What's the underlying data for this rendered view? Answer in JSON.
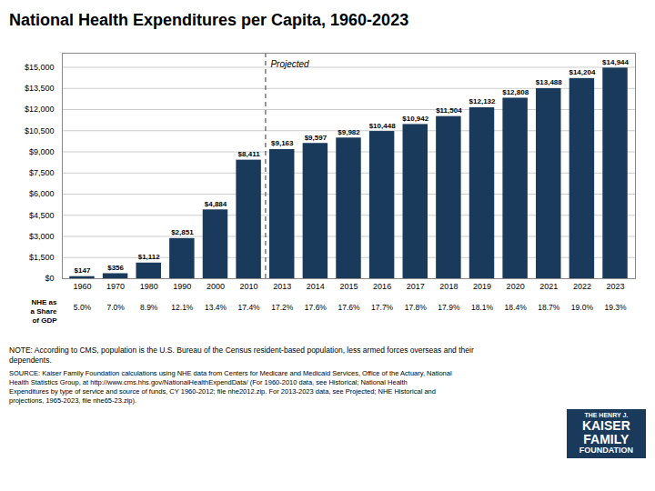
{
  "chart_data": {
    "type": "bar",
    "title": "National Health Expenditures per Capita, 1960-2023",
    "categories": [
      "1960",
      "1970",
      "1980",
      "1990",
      "2000",
      "2010",
      "2013",
      "2014",
      "2015",
      "2016",
      "2017",
      "2018",
      "2019",
      "2020",
      "2021",
      "2022",
      "2023"
    ],
    "values": [
      147,
      356,
      1112,
      2851,
      4884,
      8411,
      9163,
      9597,
      9982,
      10448,
      10942,
      11504,
      12132,
      12808,
      13488,
      14204,
      14944
    ],
    "value_labels": [
      "$147",
      "$356",
      "$1,112",
      "$2,851",
      "$4,884",
      "$8,411",
      "$9,163",
      "$9,597",
      "$9,982",
      "$10,448",
      "$10,942",
      "$11,504",
      "$12,132",
      "$12,808",
      "$13,488",
      "$14,204",
      "$14,944"
    ],
    "data_labels": true,
    "color": "#1a3a5c",
    "ylim": [
      0,
      16000
    ],
    "yticks": [
      {
        "value": 0,
        "label": "$0"
      },
      {
        "value": 1500,
        "label": "$1,500"
      },
      {
        "value": 3000,
        "label": "$3,000"
      },
      {
        "value": 4500,
        "label": "$4,500"
      },
      {
        "value": 6000,
        "label": "$6,000"
      },
      {
        "value": 7500,
        "label": "$7,500"
      },
      {
        "value": 9000,
        "label": "$9,000"
      },
      {
        "value": 10500,
        "label": "$10,500"
      },
      {
        "value": 12000,
        "label": "$12,000"
      },
      {
        "value": 13500,
        "label": "$13,500"
      },
      {
        "value": 15000,
        "label": "$15,000"
      }
    ],
    "grid": true,
    "projected_label": "Projected",
    "projected_start": "2013",
    "gdp_share_label": "NHE as\na Share\nof GDP",
    "gdp_shares": [
      "5.0%",
      "7.0%",
      "8.9%",
      "12.1%",
      "13.4%",
      "17.4%",
      "17.2%",
      "17.6%",
      "17.6%",
      "17.7%",
      "17.8%",
      "17.9%",
      "18.1%",
      "18.4%",
      "18.7%",
      "19.0%",
      "19.3%"
    ],
    "note": "NOTE: According to CMS, population is the U.S. Bureau of the Census resident-based population, less armed forces overseas and their\ndependents.",
    "source": "SOURCE: Kaiser Family Foundation calculations using NHE data from Centers for Medicare and Medicaid Services, Office of the Actuary, National\nHealth Statistics Group, at http://www.cms.hhs.gov/NationalHealthExpendData/ (For 1960-2010 data, see Historical; National Health\nExpenditures by type of service and source of funds, CY 1960-2012; file nhe2012.zip. For 2013-2023 data, see Projected; NHE Historical and\nprojections, 1965-2023, file nhe65-23.zip).",
    "logo": {
      "text": [
        "THE HENRY J.",
        "KAISER",
        "FAMILY",
        "FOUNDATION"
      ],
      "color": "#1a3a5c"
    }
  }
}
